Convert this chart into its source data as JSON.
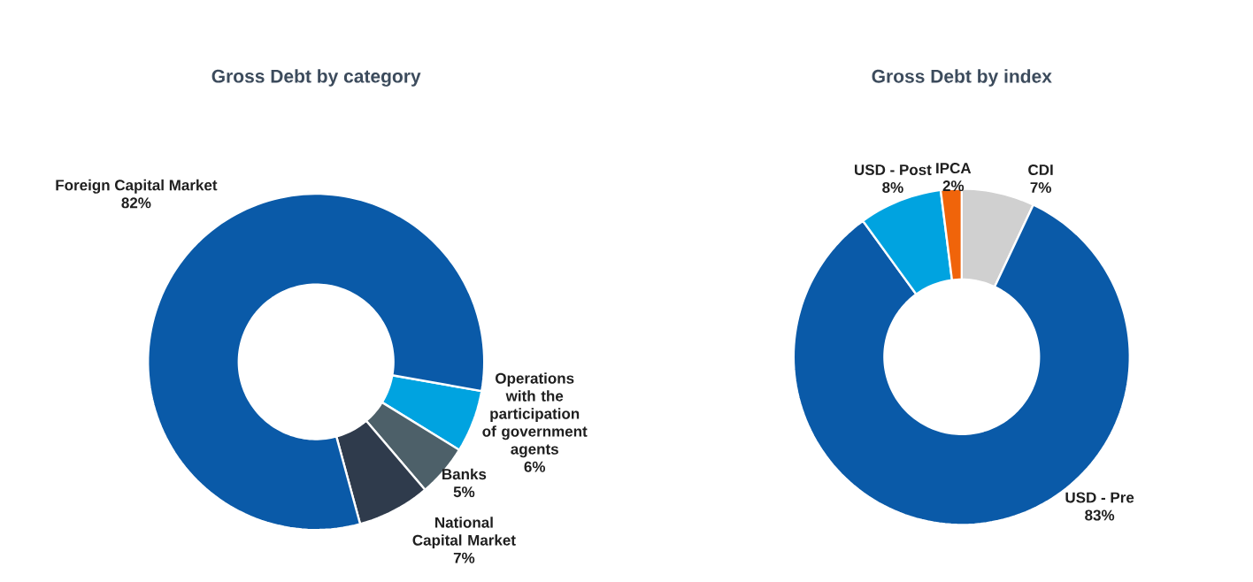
{
  "chart_data": [
    {
      "type": "donut",
      "title": "Gross Debt by category",
      "categories": [
        "Operations with the participation of government agents",
        "Banks",
        "National Capital Market",
        "Foreign Capital Market"
      ],
      "values": [
        6,
        5,
        7,
        82
      ],
      "value_labels": [
        "6%",
        "5%",
        "7%",
        "82%"
      ],
      "colors": [
        "#00a3e0",
        "#4d6069",
        "#2f3b4c",
        "#0a5aa8"
      ]
    },
    {
      "type": "donut",
      "title": "Gross Debt by index",
      "categories": [
        "CDI",
        "USD - Pre",
        "USD - Post",
        "IPCA"
      ],
      "values": [
        7,
        83,
        8,
        2
      ],
      "value_labels": [
        "7%",
        "83%",
        "8%",
        "2%"
      ],
      "colors": [
        "#d0d0d0",
        "#0a5aa8",
        "#00a3e0",
        "#f0640a"
      ]
    }
  ]
}
